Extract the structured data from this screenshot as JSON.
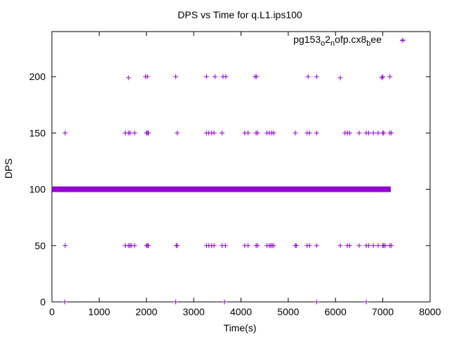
{
  "chart_data": {
    "type": "scatter",
    "title": "DPS vs Time for q.L1.ips100",
    "xlabel": "Time(s)",
    "ylabel": "DPS",
    "xlim": [
      0,
      8000
    ],
    "ylim": [
      0,
      240
    ],
    "xticks": [
      0,
      1000,
      2000,
      3000,
      4000,
      5000,
      6000,
      7000,
      8000
    ],
    "yticks": [
      0,
      50,
      100,
      150,
      200
    ],
    "grid": false,
    "legend_position": "top-right",
    "marker": "+",
    "color": "#9400d3",
    "series": [
      {
        "name_parts": [
          "pg153",
          "o",
          "2",
          "n",
          "ofp.cx8",
          "b",
          "ee"
        ],
        "points": [
          [
            270,
            0
          ],
          [
            2620,
            0
          ],
          [
            3650,
            0
          ],
          [
            5600,
            0
          ],
          [
            6650,
            0
          ],
          [
            280,
            50
          ],
          [
            1550,
            50
          ],
          [
            1620,
            50
          ],
          [
            1650,
            50
          ],
          [
            1680,
            50
          ],
          [
            1750,
            50
          ],
          [
            2000,
            50
          ],
          [
            2020,
            50
          ],
          [
            2040,
            50
          ],
          [
            2630,
            50
          ],
          [
            2650,
            50
          ],
          [
            3270,
            50
          ],
          [
            3320,
            50
          ],
          [
            3380,
            50
          ],
          [
            3430,
            50
          ],
          [
            3600,
            50
          ],
          [
            3670,
            50
          ],
          [
            4080,
            50
          ],
          [
            4150,
            50
          ],
          [
            4320,
            50
          ],
          [
            4350,
            50
          ],
          [
            4550,
            50
          ],
          [
            4600,
            50
          ],
          [
            4630,
            50
          ],
          [
            4660,
            50
          ],
          [
            4690,
            50
          ],
          [
            5150,
            50
          ],
          [
            5170,
            50
          ],
          [
            5400,
            50
          ],
          [
            5450,
            50
          ],
          [
            5600,
            50
          ],
          [
            6100,
            50
          ],
          [
            6250,
            50
          ],
          [
            6300,
            50
          ],
          [
            6500,
            50
          ],
          [
            6650,
            50
          ],
          [
            6700,
            50
          ],
          [
            6800,
            50
          ],
          [
            6900,
            50
          ],
          [
            7000,
            50
          ],
          [
            7020,
            50
          ],
          [
            7050,
            50
          ],
          [
            7150,
            50
          ],
          [
            7180,
            50
          ],
          [
            280,
            150
          ],
          [
            1550,
            150
          ],
          [
            1620,
            150
          ],
          [
            1650,
            150
          ],
          [
            1750,
            150
          ],
          [
            2000,
            150
          ],
          [
            2020,
            150
          ],
          [
            2040,
            150
          ],
          [
            2650,
            150
          ],
          [
            3270,
            150
          ],
          [
            3320,
            150
          ],
          [
            3380,
            150
          ],
          [
            3430,
            150
          ],
          [
            3600,
            150
          ],
          [
            4080,
            150
          ],
          [
            4150,
            150
          ],
          [
            4320,
            150
          ],
          [
            4350,
            150
          ],
          [
            4550,
            150
          ],
          [
            4600,
            150
          ],
          [
            4650,
            150
          ],
          [
            4690,
            150
          ],
          [
            5150,
            150
          ],
          [
            5400,
            150
          ],
          [
            5450,
            150
          ],
          [
            5600,
            150
          ],
          [
            6200,
            150
          ],
          [
            6250,
            150
          ],
          [
            6300,
            150
          ],
          [
            6500,
            150
          ],
          [
            6650,
            150
          ],
          [
            6700,
            150
          ],
          [
            6800,
            150
          ],
          [
            6900,
            150
          ],
          [
            7000,
            150
          ],
          [
            7020,
            150
          ],
          [
            7150,
            150
          ],
          [
            7180,
            150
          ],
          [
            1620,
            199
          ],
          [
            1980,
            200
          ],
          [
            2020,
            200
          ],
          [
            2620,
            200
          ],
          [
            3270,
            200
          ],
          [
            3450,
            200
          ],
          [
            3620,
            200
          ],
          [
            3680,
            200
          ],
          [
            4300,
            200
          ],
          [
            4330,
            200
          ],
          [
            5420,
            200
          ],
          [
            5600,
            200
          ],
          [
            6100,
            199
          ],
          [
            6980,
            199
          ],
          [
            7000,
            200
          ],
          [
            7150,
            200
          ],
          [
            7420,
            232
          ]
        ],
        "band": {
          "y": 100,
          "x_from": 0,
          "x_to": 7170
        }
      }
    ]
  }
}
